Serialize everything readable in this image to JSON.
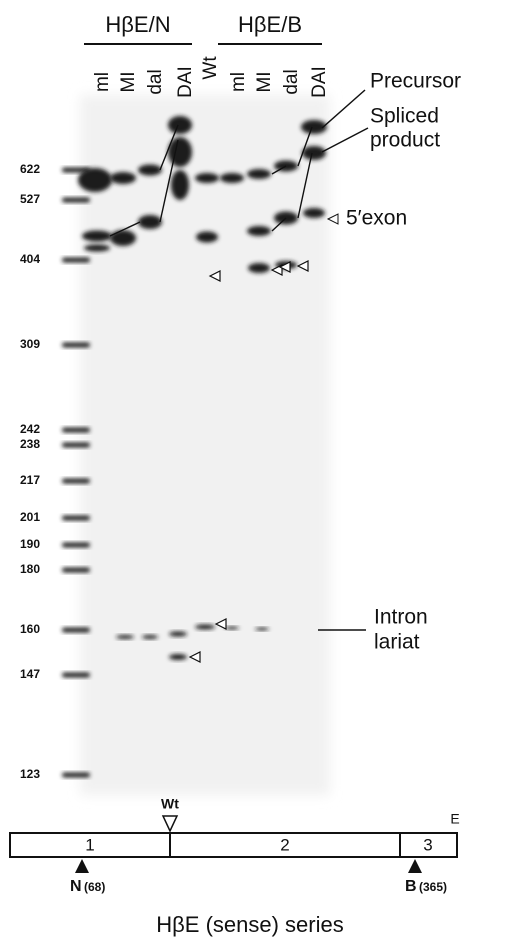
{
  "header": {
    "groups": [
      {
        "label": "HβE/N",
        "lanes": [
          "ml",
          "MI",
          "dal",
          "DAI"
        ]
      },
      {
        "label": "HβE/B",
        "lanes": [
          "ml",
          "MI",
          "dal",
          "DAI"
        ]
      }
    ],
    "wt_lane": "Wt"
  },
  "markers": [
    "622",
    "527",
    "404",
    "309",
    "242",
    "238",
    "217",
    "201",
    "190",
    "180",
    "160",
    "147",
    "123"
  ],
  "annotations": {
    "precursor": "Precursor",
    "spliced_product": [
      "Spliced",
      "product"
    ],
    "exon": "5′exon",
    "intron_lariat": [
      "Intron",
      "lariat"
    ]
  },
  "map": {
    "exons": [
      "1",
      "2",
      "3"
    ],
    "end": "E",
    "wt": "Wt",
    "sites": [
      {
        "label": "N",
        "position": "(68)"
      },
      {
        "label": "B",
        "position": "(365)"
      }
    ]
  },
  "caption": "HβE (sense) series"
}
